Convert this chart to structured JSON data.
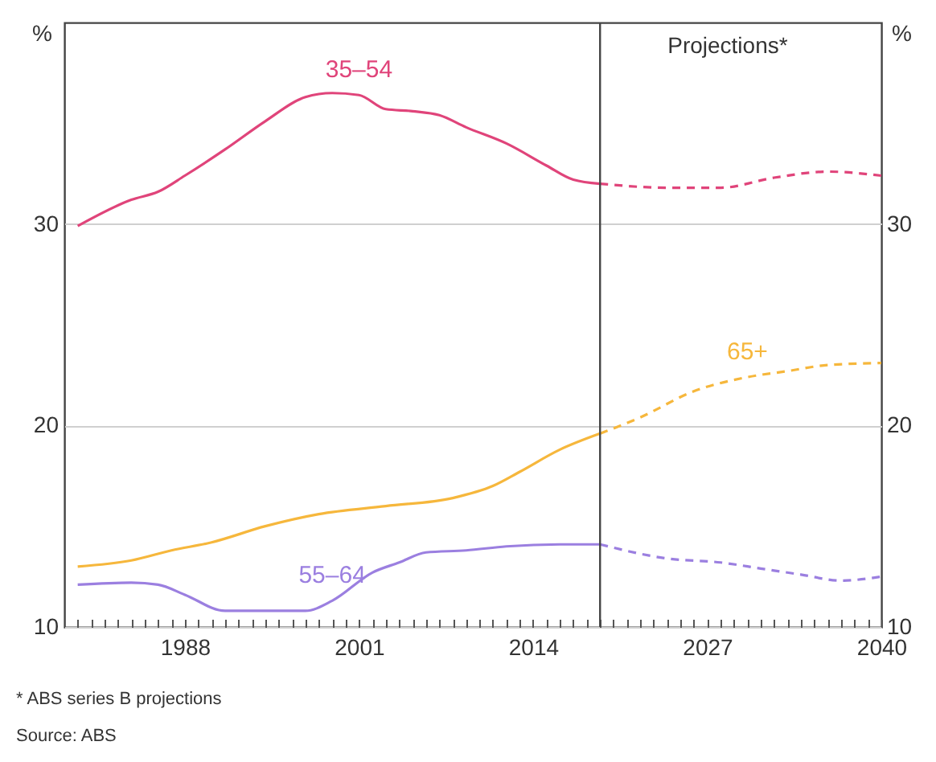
{
  "chart_data": {
    "type": "line",
    "ylabel": "%",
    "y2label": "%",
    "xlim": [
      1979,
      2040
    ],
    "ylim": [
      10,
      40
    ],
    "y2lim": [
      10,
      40
    ],
    "yticks": [
      10,
      20,
      30
    ],
    "y2ticks": [
      10,
      20,
      30
    ],
    "xticks": [
      {
        "value": 1980,
        "label": null
      },
      {
        "value": 1981,
        "label": null
      },
      {
        "value": 1982,
        "label": null
      },
      {
        "value": 1983,
        "label": null
      },
      {
        "value": 1984,
        "label": null
      },
      {
        "value": 1985,
        "label": null
      },
      {
        "value": 1986,
        "label": null
      },
      {
        "value": 1987,
        "label": null
      },
      1988,
      {
        "value": 1989,
        "label": null
      },
      {
        "value": 1990,
        "label": null
      },
      {
        "value": 1991,
        "label": null
      },
      {
        "value": 1992,
        "label": null
      },
      {
        "value": 1993,
        "label": null
      },
      {
        "value": 1994,
        "label": null
      },
      {
        "value": 1995,
        "label": null
      },
      {
        "value": 1996,
        "label": null
      },
      {
        "value": 1997,
        "label": null
      },
      {
        "value": 1998,
        "label": null
      },
      {
        "value": 1999,
        "label": null
      },
      {
        "value": 2000,
        "label": null
      },
      2001,
      {
        "value": 2002,
        "label": null
      },
      {
        "value": 2003,
        "label": null
      },
      {
        "value": 2004,
        "label": null
      },
      {
        "value": 2005,
        "label": null
      },
      {
        "value": 2006,
        "label": null
      },
      {
        "value": 2007,
        "label": null
      },
      {
        "value": 2008,
        "label": null
      },
      {
        "value": 2009,
        "label": null
      },
      {
        "value": 2010,
        "label": null
      },
      {
        "value": 2011,
        "label": null
      },
      {
        "value": 2012,
        "label": null
      },
      {
        "value": 2013,
        "label": null
      },
      2014,
      {
        "value": 2015,
        "label": null
      },
      {
        "value": 2016,
        "label": null
      },
      {
        "value": 2017,
        "label": null
      },
      {
        "value": 2018,
        "label": null
      },
      {
        "value": 2019,
        "label": null
      },
      {
        "value": 2020,
        "label": null
      },
      {
        "value": 2021,
        "label": null
      },
      {
        "value": 2022,
        "label": null
      },
      {
        "value": 2023,
        "label": null
      },
      {
        "value": 2024,
        "label": null
      },
      {
        "value": 2025,
        "label": null
      },
      {
        "value": 2026,
        "label": null
      },
      2027,
      {
        "value": 2028,
        "label": null
      },
      {
        "value": 2029,
        "label": null
      },
      {
        "value": 2030,
        "label": null
      },
      {
        "value": 2031,
        "label": null
      },
      {
        "value": 2032,
        "label": null
      },
      {
        "value": 2033,
        "label": null
      },
      {
        "value": 2034,
        "label": null
      },
      {
        "value": 2035,
        "label": null
      },
      {
        "value": 2036,
        "label": null
      },
      {
        "value": 2037,
        "label": null
      },
      {
        "value": 2038,
        "label": null
      },
      {
        "value": 2039,
        "label": null
      },
      2040
    ],
    "series": [
      {
        "name": "35–54",
        "color": "#e0447a",
        "line_style": "solid",
        "x": [
          1980,
          1984,
          1986,
          1988,
          1991,
          1994,
          1997,
          1999,
          2001,
          2003,
          2005,
          2007,
          2009,
          2012,
          2015,
          2017,
          2019
        ],
        "values": [
          29.9,
          31.2,
          31.6,
          32.4,
          33.7,
          35.1,
          36.3,
          36.5,
          36.4,
          35.7,
          35.6,
          35.4,
          34.8,
          34.0,
          32.9,
          32.2,
          32.0
        ]
      },
      {
        "color": "#e0447a",
        "line_style": "dashed",
        "x": [
          2019,
          2024,
          2028,
          2032,
          2036,
          2040
        ],
        "values": [
          32.0,
          31.8,
          31.8,
          32.3,
          32.6,
          32.4
        ]
      },
      {
        "color": "#f6b73c",
        "line_style": "solid",
        "x": [
          1980,
          1984,
          1987,
          1990,
          1994,
          1998,
          2003,
          2008,
          2011,
          2013,
          2016,
          2019
        ],
        "values": [
          13.0,
          13.3,
          13.8,
          14.2,
          15.0,
          15.6,
          16.0,
          16.4,
          17.0,
          17.7,
          18.8,
          19.6
        ]
      },
      {
        "name": "65+",
        "color": "#f6b73c",
        "line_style": "dashed",
        "x": [
          2019,
          2022,
          2026,
          2030,
          2033,
          2036,
          2040
        ],
        "values": [
          19.6,
          20.4,
          21.7,
          22.4,
          22.7,
          23.0,
          23.1
        ]
      },
      {
        "name": "55–64",
        "color": "#9b7fe0",
        "line_style": "solid",
        "x": [
          1980,
          1984,
          1986,
          1988,
          1991,
          1994,
          1997,
          1999,
          2002,
          2004,
          2006,
          2009,
          2012,
          2016,
          2019
        ],
        "values": [
          12.1,
          12.2,
          12.1,
          11.6,
          10.8,
          10.8,
          10.8,
          11.3,
          12.7,
          13.2,
          13.7,
          13.8,
          14.0,
          14.1,
          14.1
        ]
      },
      {
        "color": "#9b7fe0",
        "line_style": "dashed",
        "x": [
          2019,
          2024,
          2028,
          2031,
          2034,
          2037,
          2040
        ],
        "values": [
          14.1,
          13.4,
          13.2,
          12.9,
          12.6,
          12.3,
          12.5
        ]
      }
    ],
    "ref_lines": [
      {
        "axis": "x",
        "value": 2019,
        "label": "Projections*",
        "color": "#444444"
      }
    ],
    "grid": "y",
    "annotations": [
      "*     ABS series B projections",
      "Source:  ABS"
    ]
  }
}
